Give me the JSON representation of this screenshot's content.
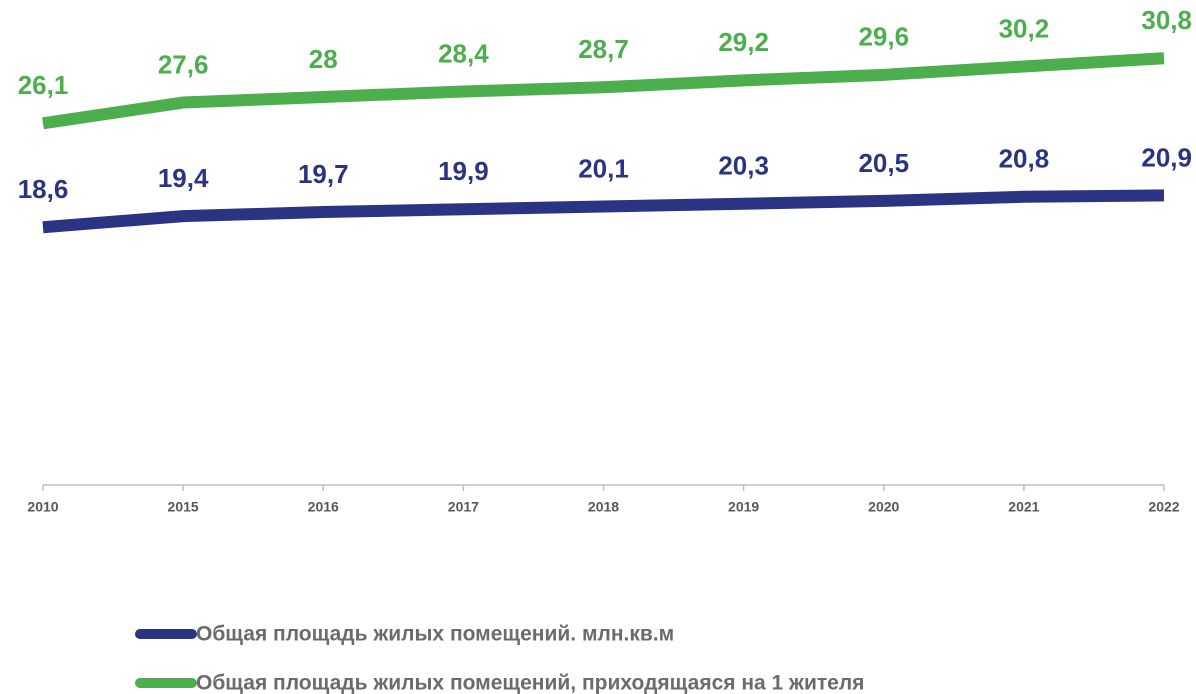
{
  "chart_data": {
    "type": "line",
    "categories": [
      "2010",
      "2015",
      "2016",
      "2017",
      "2018",
      "2019",
      "2020",
      "2021",
      "2022"
    ],
    "series": [
      {
        "name": "Общая площадь жилых помещений. млн.кв.м",
        "color": "#2b3483",
        "values": [
          18.6,
          19.4,
          19.7,
          19.9,
          20.1,
          20.3,
          20.5,
          20.8,
          20.9
        ],
        "value_labels": [
          "18,6",
          "19,4",
          "19,7",
          "19,9",
          "20,1",
          "20,3",
          "20,5",
          "20,8",
          "20,9"
        ]
      },
      {
        "name": "Общая площадь жилых помещений, приходящаяся на 1 жителя",
        "color": "#4cae4c",
        "values": [
          26.1,
          27.6,
          28,
          28.4,
          28.7,
          29.2,
          29.6,
          30.2,
          30.8
        ],
        "value_labels": [
          "26,1",
          "27,6",
          "28",
          "28,4",
          "28,7",
          "29,2",
          "29,6",
          "30,2",
          "30,8"
        ]
      }
    ],
    "ylim": [
      0,
      35
    ],
    "legend": "bottom"
  }
}
